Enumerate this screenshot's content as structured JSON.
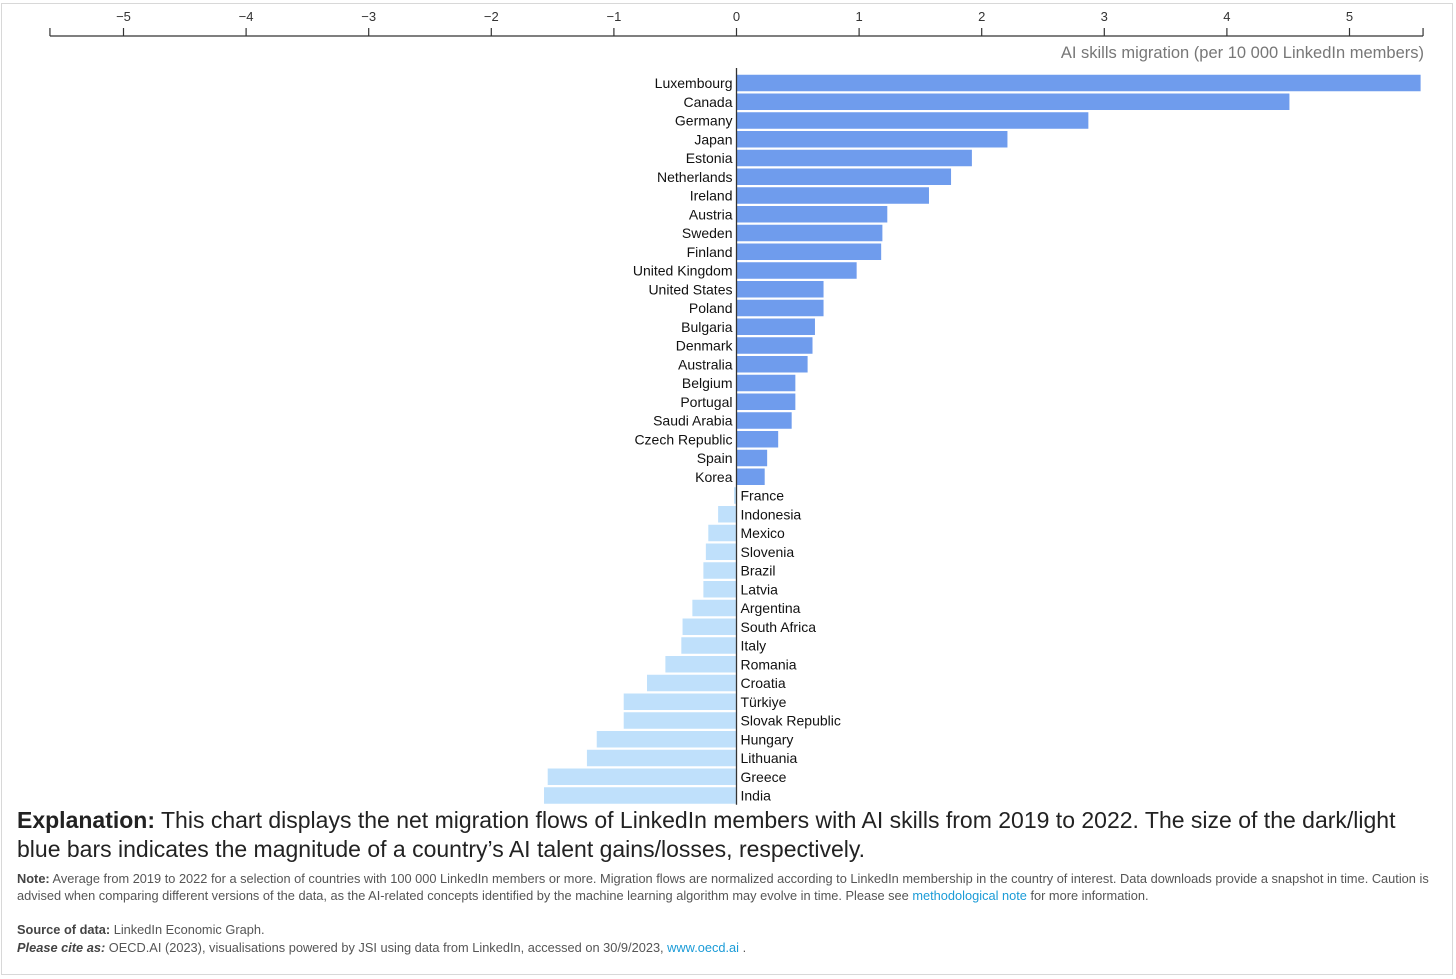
{
  "chart_data": {
    "type": "bar",
    "orientation": "horizontal",
    "axis_title": "AI skills migration (per 10 000 LinkedIn members)",
    "axis_position": "top",
    "xlim": [
      -5.6,
      5.6
    ],
    "ticks": [
      {
        "value": -5,
        "label": "−5"
      },
      {
        "value": -4,
        "label": "−4"
      },
      {
        "value": -3,
        "label": "−3"
      },
      {
        "value": -2,
        "label": "−2"
      },
      {
        "value": -1,
        "label": "−1"
      },
      {
        "value": 0,
        "label": "0"
      },
      {
        "value": 1,
        "label": "1"
      },
      {
        "value": 2,
        "label": "2"
      },
      {
        "value": 3,
        "label": "3"
      },
      {
        "value": 4,
        "label": "4"
      },
      {
        "value": 5,
        "label": "5"
      }
    ],
    "colors": {
      "gain": "#6f9ced",
      "loss": "#bfe0fb",
      "axis": "#333333"
    },
    "grid": false,
    "categories": [
      "Luxembourg",
      "Canada",
      "Germany",
      "Japan",
      "Estonia",
      "Netherlands",
      "Ireland",
      "Austria",
      "Sweden",
      "Finland",
      "United Kingdom",
      "United States",
      "Poland",
      "Bulgaria",
      "Denmark",
      "Australia",
      "Belgium",
      "Portugal",
      "Saudi Arabia",
      "Czech Republic",
      "Spain",
      "Korea",
      "France",
      "Indonesia",
      "Mexico",
      "Slovenia",
      "Brazil",
      "Latvia",
      "Argentina",
      "South Africa",
      "Italy",
      "Romania",
      "Croatia",
      "Türkiye",
      "Slovak Republic",
      "Hungary",
      "Lithuania",
      "Greece",
      "India"
    ],
    "values": [
      5.58,
      4.51,
      2.87,
      2.21,
      1.92,
      1.75,
      1.57,
      1.23,
      1.19,
      1.18,
      0.98,
      0.71,
      0.71,
      0.64,
      0.62,
      0.58,
      0.48,
      0.48,
      0.45,
      0.34,
      0.25,
      0.23,
      -0.02,
      -0.15,
      -0.23,
      -0.25,
      -0.27,
      -0.27,
      -0.36,
      -0.44,
      -0.45,
      -0.58,
      -0.73,
      -0.92,
      -0.92,
      -1.14,
      -1.22,
      -1.54,
      -1.57
    ]
  },
  "caption": {
    "explanation_lead": "Explanation:",
    "explanation_text": " This chart displays the net migration flows of LinkedIn members with AI skills from 2019 to 2022. The size of the dark/light blue bars indicates the magnitude of a country’s AI talent gains/losses, respectively.",
    "note_label": "Note:",
    "note_text": " Average from 2019 to 2022 for a selection of countries with 100 000 LinkedIn members or more. Migration flows are normalized according to LinkedIn membership in the country of interest. Data downloads provide a snapshot in time. Caution is advised when comparing different versions of the data, as the AI-related concepts identified by the machine learning algorithm may evolve in time. Please see ",
    "note_link": "methodological note",
    "note_tail": " for more information.",
    "source_label": "Source of data:",
    "source_text": " LinkedIn Economic Graph.",
    "cite_label": "Please cite as:",
    "cite_text": " OECD.AI (2023), visualisations powered by JSI using data from LinkedIn, accessed on 30/9/2023, ",
    "cite_link": "www.oecd.ai",
    "cite_tail": " ."
  }
}
